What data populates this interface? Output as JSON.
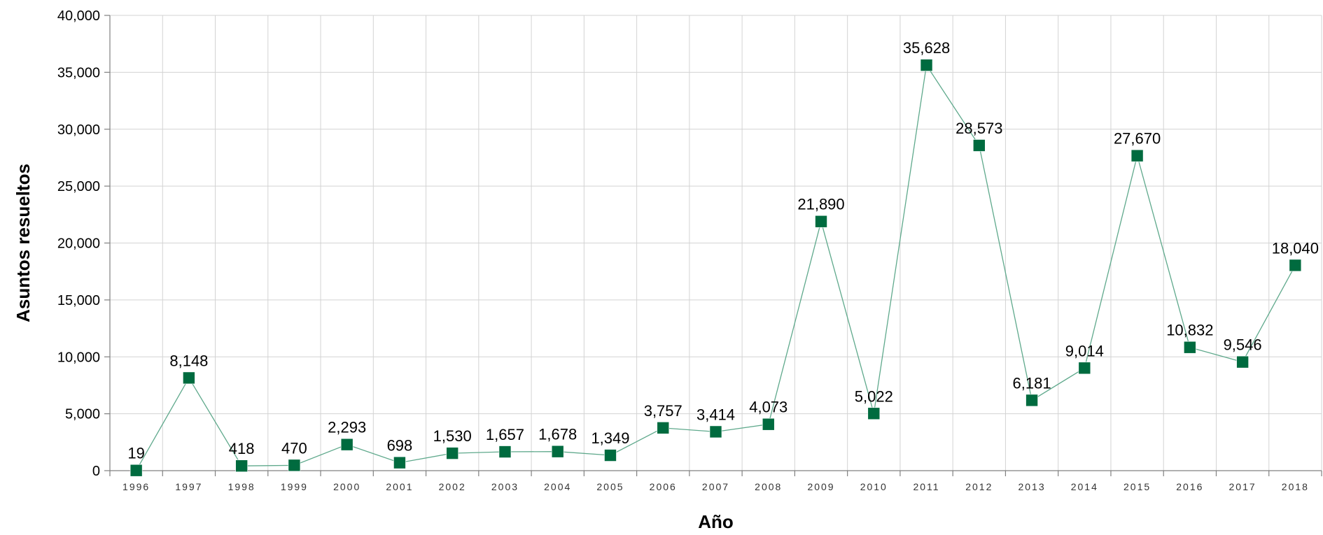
{
  "chart_data": {
    "type": "line",
    "xlabel": "Año",
    "ylabel": "Asuntos resueltos",
    "ylim": [
      0,
      40000
    ],
    "yticks": [
      0,
      5000,
      10000,
      15000,
      20000,
      25000,
      30000,
      35000,
      40000
    ],
    "ytick_labels": [
      "0",
      "5,000",
      "10,000",
      "15,000",
      "20,000",
      "25,000",
      "30,000",
      "35,000",
      "40,000"
    ],
    "grid": true,
    "categories": [
      "1996",
      "1997",
      "1998",
      "1999",
      "2000",
      "2001",
      "2002",
      "2003",
      "2004",
      "2005",
      "2006",
      "2007",
      "2008",
      "2009",
      "2010",
      "2011",
      "2012",
      "2013",
      "2014",
      "2015",
      "2016",
      "2017",
      "2018"
    ],
    "series": [
      {
        "values": [
          19,
          8148,
          418,
          470,
          2293,
          698,
          1530,
          1657,
          1678,
          1349,
          3757,
          3414,
          4073,
          21890,
          5022,
          35628,
          28573,
          6181,
          9014,
          27670,
          10832,
          9546,
          18040
        ],
        "labels": [
          "19",
          "8,148",
          "418",
          "470",
          "2,293",
          "698",
          "1,530",
          "1,657",
          "1,678",
          "1,349",
          "3,757",
          "3,414",
          "4,073",
          "21,890",
          "5,022",
          "35,628",
          "28,573",
          "6,181",
          "9,014",
          "27,670",
          "10,832",
          "9,546",
          "18,040"
        ],
        "line_color": "#5fa98c",
        "marker_color": "#006b3f",
        "marker": "square"
      }
    ]
  }
}
